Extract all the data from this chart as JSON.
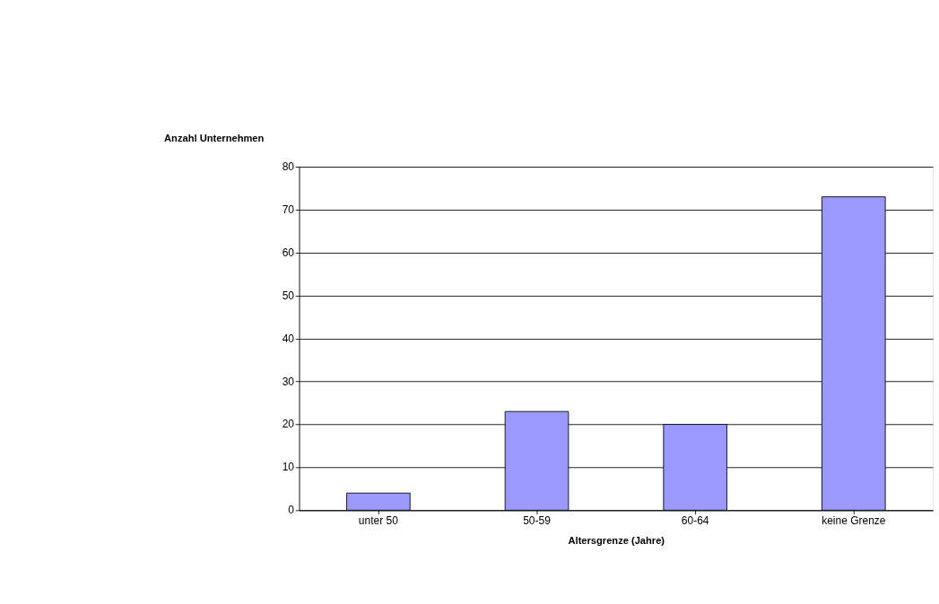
{
  "chart_data": {
    "type": "bar",
    "ylabel": "Anzahl Unternehmen",
    "xlabel": "Altersgrenze (Jahre)",
    "categories": [
      "unter 50",
      "50-59",
      "60-64",
      "keine Grenze"
    ],
    "values": [
      4,
      23,
      20,
      73
    ],
    "color": "#9999ff",
    "ylim": [
      0,
      80
    ],
    "yticks": [
      0,
      10,
      20,
      30,
      40,
      50,
      60,
      70,
      80
    ],
    "grid": "y"
  }
}
